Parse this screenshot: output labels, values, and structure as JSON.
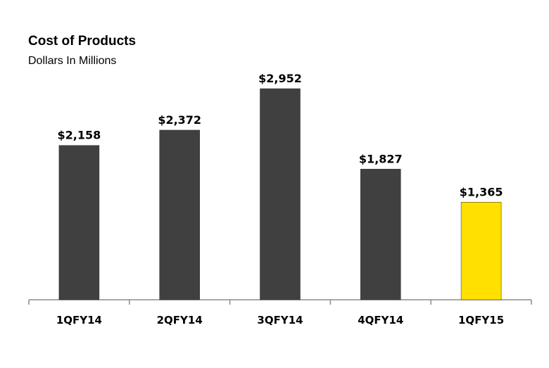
{
  "chart_data": {
    "type": "bar",
    "title": "Cost of Products",
    "subtitle": "Dollars In Millions",
    "categories": [
      "1QFY14",
      "2QFY14",
      "3QFY14",
      "4QFY14",
      "1QFY15"
    ],
    "values": [
      2158,
      2372,
      2952,
      1827,
      1365
    ],
    "value_labels": [
      "$2,158",
      "$2,372",
      "$2,952",
      "$1,827",
      "$1,365"
    ],
    "colors": [
      "#404040",
      "#404040",
      "#404040",
      "#404040",
      "#FFE000"
    ],
    "xlabel": "",
    "ylabel": "",
    "ylim": [
      0,
      2952
    ],
    "grid": false,
    "legend": "none"
  }
}
